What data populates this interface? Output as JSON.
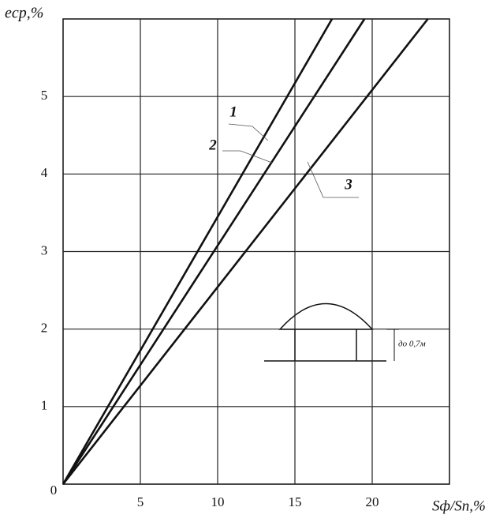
{
  "chart_data": {
    "type": "line",
    "y_label": "eср,%",
    "x_label": "Sф/Sп,%",
    "annotation": "до 0,7м",
    "series": [
      {
        "name": "1",
        "color": "#111111",
        "x": [
          0,
          17.4
        ],
        "values": [
          0,
          6
        ]
      },
      {
        "name": "2",
        "color": "#111111",
        "x": [
          0,
          19.5
        ],
        "values": [
          0,
          6
        ]
      },
      {
        "name": "3",
        "color": "#111111",
        "x": [
          0,
          23.6
        ],
        "values": [
          0,
          6
        ]
      }
    ],
    "xlim": [
      0,
      25
    ],
    "ylim": [
      0,
      6
    ],
    "xticks": [
      5,
      10,
      15,
      20
    ],
    "yticks": [
      0,
      1,
      2,
      3,
      4,
      5
    ],
    "grid": true
  }
}
